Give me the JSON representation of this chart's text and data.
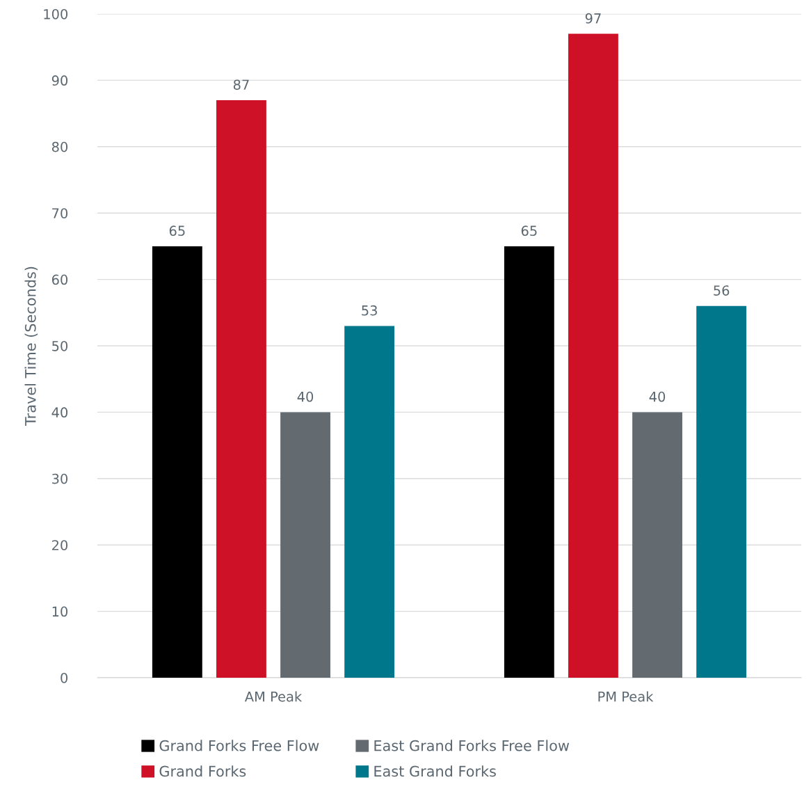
{
  "chart_data": {
    "type": "bar",
    "ylabel": "Travel Time (Seconds)",
    "categories": [
      "AM Peak",
      "PM Peak"
    ],
    "series": [
      {
        "name": "Grand Forks Free Flow",
        "color": "#000000",
        "values": [
          65,
          65
        ]
      },
      {
        "name": "Grand Forks",
        "color": "#ce1126",
        "values": [
          87,
          97
        ]
      },
      {
        "name": "East Grand Forks Free Flow",
        "color": "#636a70",
        "values": [
          40,
          40
        ]
      },
      {
        "name": "East Grand Forks",
        "color": "#00778b",
        "values": [
          53,
          56
        ]
      }
    ],
    "ylim": [
      0,
      100
    ],
    "yticks": [
      0,
      10,
      20,
      30,
      40,
      50,
      60,
      70,
      80,
      90,
      100
    ],
    "grid": "y",
    "legend": "bottom",
    "data_labels": true
  }
}
